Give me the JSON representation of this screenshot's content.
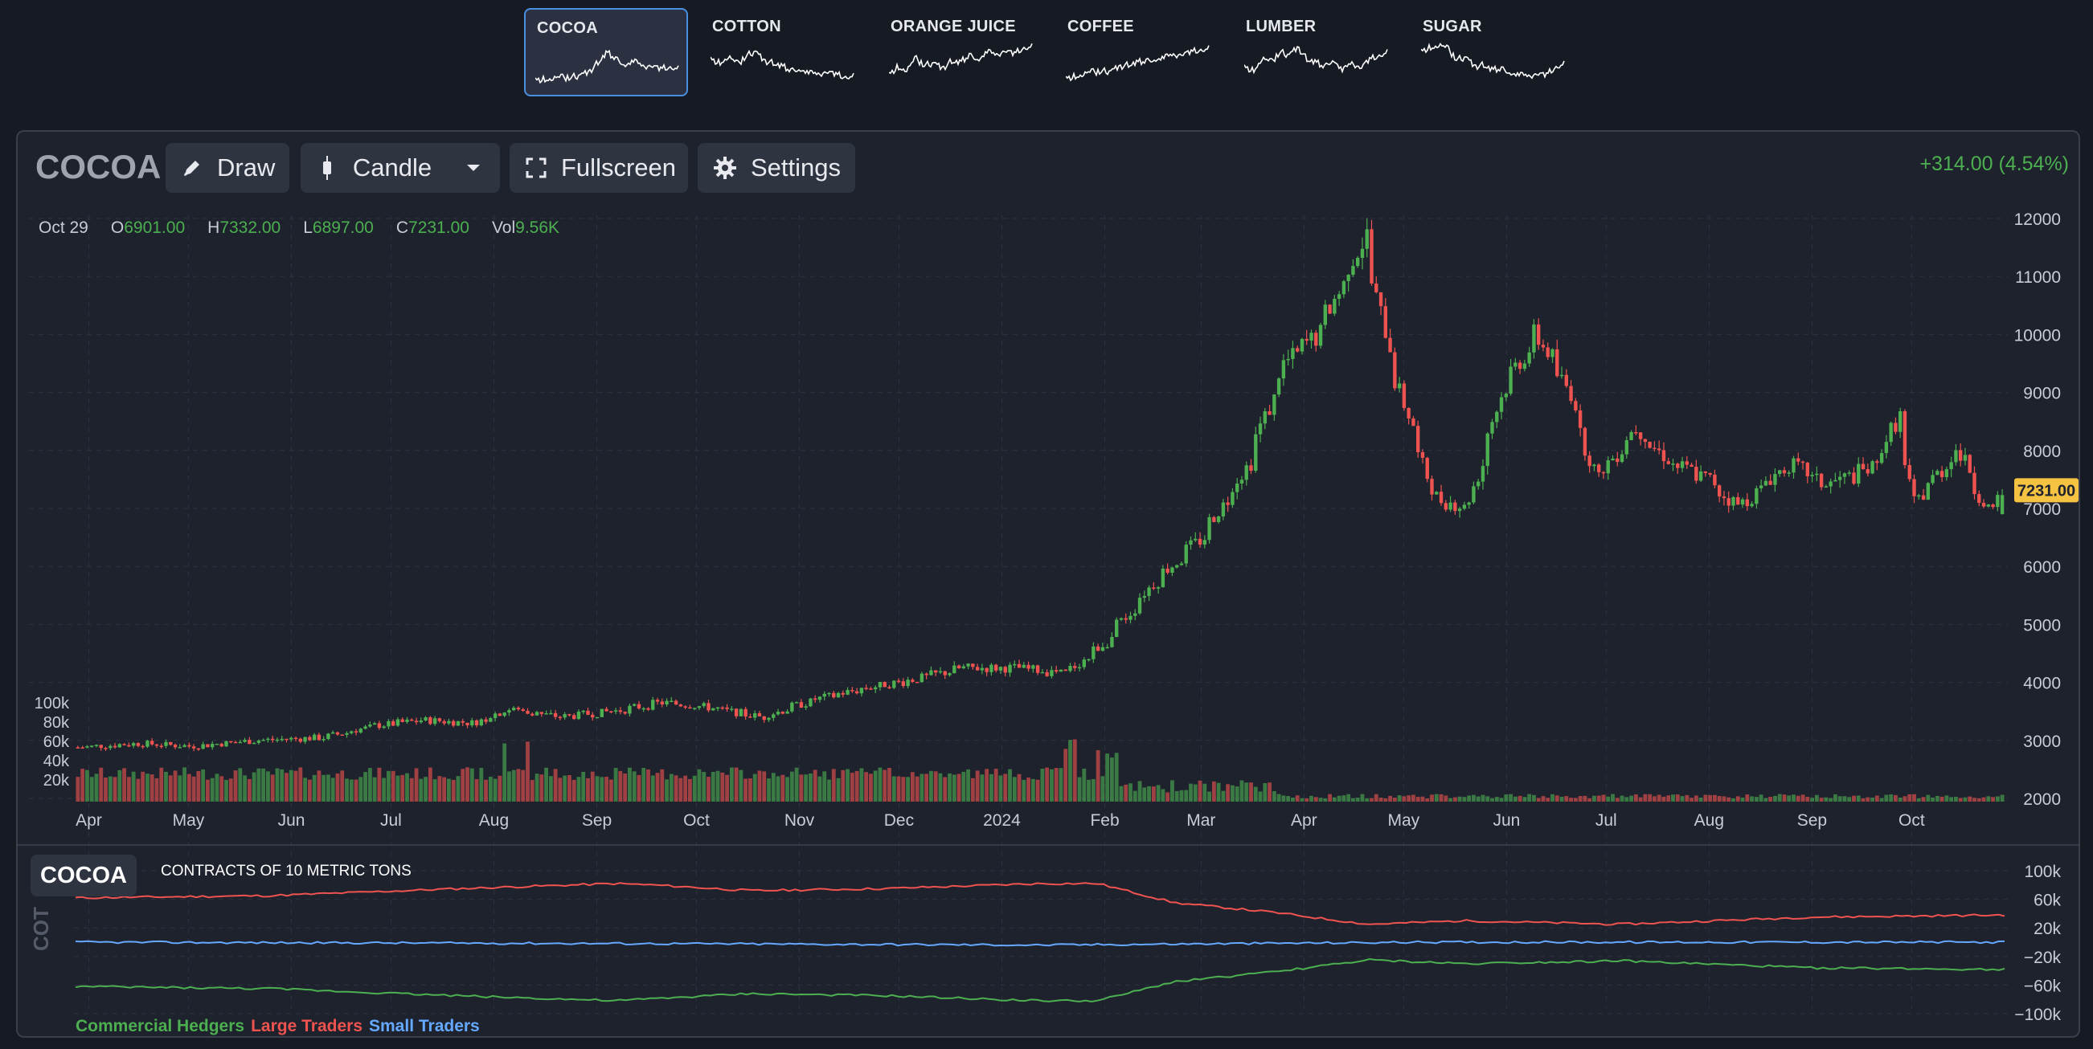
{
  "tabs": [
    {
      "label": "COCOA",
      "active": true
    },
    {
      "label": "COTTON",
      "active": false
    },
    {
      "label": "ORANGE JUICE",
      "active": false
    },
    {
      "label": "COFFEE",
      "active": false
    },
    {
      "label": "LUMBER",
      "active": false
    },
    {
      "label": "SUGAR",
      "active": false
    }
  ],
  "toolbar": {
    "symbol": "COCOA",
    "draw_label": "Draw",
    "chart_type_label": "Candle",
    "fullscreen_label": "Fullscreen",
    "settings_label": "Settings",
    "change": "+314.00 (4.54%)"
  },
  "ohlc": {
    "date": "Oct 29",
    "open_key": "O",
    "open": "6901.00",
    "high_key": "H",
    "high": "7332.00",
    "low_key": "L",
    "low": "6897.00",
    "close_key": "C",
    "close": "7231.00",
    "vol_key": "Vol",
    "vol": "9.56K"
  },
  "last_price_tag": "7231.00",
  "cot": {
    "tag": "COCOA",
    "unit": "CONTRACTS OF 10 METRIC TONS",
    "side_label": "COT",
    "legend": [
      {
        "label": "Commercial Hedgers",
        "color": "#4caf50"
      },
      {
        "label": "Large Traders",
        "color": "#ef5350"
      },
      {
        "label": "Small Traders",
        "color": "#64a8ff"
      }
    ]
  },
  "colors": {
    "up": "#4caf50",
    "down": "#ef5350",
    "accent": "#4a90e2",
    "price_tag": "#f5c242"
  },
  "chart_data": [
    {
      "type": "candlestick",
      "title": "COCOA",
      "y_ticks": [
        12000,
        11000,
        10000,
        9000,
        8000,
        7000,
        6000,
        5000,
        4000,
        3000,
        2000
      ],
      "ylim": [
        2000,
        12000
      ],
      "x_ticks": [
        "Apr",
        "May",
        "Jun",
        "Jul",
        "Aug",
        "Sep",
        "Oct",
        "Nov",
        "Dec",
        "2024",
        "Feb",
        "Mar",
        "Apr",
        "May",
        "Jun",
        "Jul",
        "Aug",
        "Sep",
        "Oct"
      ],
      "close_path": [
        [
          "2023-03-28",
          2880
        ],
        [
          "2023-04-15",
          2950
        ],
        [
          "2023-05-01",
          2900
        ],
        [
          "2023-05-20",
          3000
        ],
        [
          "2023-06-10",
          3050
        ],
        [
          "2023-06-25",
          3250
        ],
        [
          "2023-07-10",
          3350
        ],
        [
          "2023-07-25",
          3300
        ],
        [
          "2023-08-05",
          3550
        ],
        [
          "2023-08-20",
          3400
        ],
        [
          "2023-09-05",
          3500
        ],
        [
          "2023-09-20",
          3650
        ],
        [
          "2023-10-01",
          3600
        ],
        [
          "2023-10-20",
          3400
        ],
        [
          "2023-11-05",
          3700
        ],
        [
          "2023-11-20",
          3900
        ],
        [
          "2023-12-05",
          4050
        ],
        [
          "2023-12-20",
          4250
        ],
        [
          "2024-01-05",
          4250
        ],
        [
          "2024-01-20",
          4150
        ],
        [
          "2024-02-01",
          4700
        ],
        [
          "2024-02-15",
          5700
        ],
        [
          "2024-03-01",
          6500
        ],
        [
          "2024-03-15",
          7800
        ],
        [
          "2024-03-26",
          9500
        ],
        [
          "2024-04-05",
          10000
        ],
        [
          "2024-04-19",
          11700
        ],
        [
          "2024-04-26",
          9800
        ],
        [
          "2024-05-01",
          8800
        ],
        [
          "2024-05-10",
          7200
        ],
        [
          "2024-05-20",
          7000
        ],
        [
          "2024-05-31",
          9100
        ],
        [
          "2024-06-10",
          10000
        ],
        [
          "2024-06-20",
          9000
        ],
        [
          "2024-06-28",
          7500
        ],
        [
          "2024-07-10",
          8400
        ],
        [
          "2024-07-20",
          7800
        ],
        [
          "2024-08-01",
          7500
        ],
        [
          "2024-08-10",
          7000
        ],
        [
          "2024-08-25",
          7800
        ],
        [
          "2024-09-05",
          7400
        ],
        [
          "2024-09-20",
          7700
        ],
        [
          "2024-09-27",
          8600
        ],
        [
          "2024-10-02",
          7100
        ],
        [
          "2024-10-15",
          8000
        ],
        [
          "2024-10-25",
          6900
        ],
        [
          "2024-10-29",
          7231
        ]
      ],
      "last_candle": {
        "date": "2024-10-29",
        "open": 6901,
        "high": 7332,
        "low": 6897,
        "close": 7231,
        "volume": "9.56K"
      }
    },
    {
      "type": "bar",
      "title": "Volume",
      "y_ticks": [
        "100k",
        "80k",
        "60k",
        "40k",
        "20k"
      ],
      "ylim": [
        0,
        100000
      ]
    },
    {
      "type": "line",
      "title": "COT",
      "y_ticks": [
        "100k",
        "60k",
        "20k",
        "−20k",
        "−60k",
        "−100k"
      ],
      "ylim": [
        -100000,
        100000
      ],
      "series": [
        {
          "name": "Large Traders",
          "color": "#ef5350",
          "values": [
            [
              0,
              62000
            ],
            [
              0.1,
              65000
            ],
            [
              0.2,
              75000
            ],
            [
              0.28,
              82000
            ],
            [
              0.3,
              80000
            ],
            [
              0.35,
              72000
            ],
            [
              0.42,
              75000
            ],
            [
              0.5,
              82000
            ],
            [
              0.53,
              82000
            ],
            [
              0.57,
              55000
            ],
            [
              0.62,
              42000
            ],
            [
              0.67,
              25000
            ],
            [
              0.72,
              30000
            ],
            [
              0.8,
              25000
            ],
            [
              0.9,
              35000
            ],
            [
              1,
              38000
            ]
          ]
        },
        {
          "name": "Small Traders",
          "color": "#64a8ff",
          "values": [
            [
              0,
              0
            ],
            [
              0.3,
              -2000
            ],
            [
              0.5,
              -4000
            ],
            [
              0.7,
              0
            ],
            [
              1,
              0
            ]
          ]
        },
        {
          "name": "Commercial Hedgers",
          "color": "#4caf50",
          "values": [
            [
              0,
              -62000
            ],
            [
              0.1,
              -65000
            ],
            [
              0.2,
              -75000
            ],
            [
              0.28,
              -82000
            ],
            [
              0.3,
              -79000
            ],
            [
              0.35,
              -72000
            ],
            [
              0.42,
              -75000
            ],
            [
              0.5,
              -82000
            ],
            [
              0.53,
              -82000
            ],
            [
              0.57,
              -55000
            ],
            [
              0.62,
              -42000
            ],
            [
              0.67,
              -25000
            ],
            [
              0.72,
              -30000
            ],
            [
              0.8,
              -26000
            ],
            [
              0.9,
              -36000
            ],
            [
              1,
              -38000
            ]
          ]
        }
      ]
    }
  ],
  "sparklines": {
    "COCOA": [
      0.9,
      0.88,
      0.87,
      0.85,
      0.82,
      0.78,
      0.7,
      0.45,
      0.2,
      0.35,
      0.5,
      0.4,
      0.55,
      0.5,
      0.6,
      0.55,
      0.58
    ],
    "COTTON": [
      0.4,
      0.5,
      0.35,
      0.55,
      0.3,
      0.2,
      0.45,
      0.5,
      0.6,
      0.7,
      0.65,
      0.75,
      0.8,
      0.7,
      0.78,
      0.85,
      0.82
    ],
    "ORANGE JUICE": [
      0.8,
      0.6,
      0.7,
      0.4,
      0.55,
      0.5,
      0.65,
      0.45,
      0.5,
      0.3,
      0.4,
      0.2,
      0.3,
      0.15,
      0.25,
      0.1,
      0.05
    ],
    "COFFEE": [
      0.9,
      0.85,
      0.8,
      0.75,
      0.7,
      0.72,
      0.6,
      0.55,
      0.5,
      0.45,
      0.4,
      0.35,
      0.3,
      0.25,
      0.2,
      0.15,
      0.1
    ],
    "LUMBER": [
      0.6,
      0.7,
      0.4,
      0.5,
      0.2,
      0.3,
      0.1,
      0.4,
      0.5,
      0.6,
      0.4,
      0.7,
      0.5,
      0.6,
      0.4,
      0.3,
      0.2
    ],
    "SUGAR": [
      0.2,
      0.1,
      0.05,
      0.15,
      0.4,
      0.35,
      0.6,
      0.55,
      0.7,
      0.65,
      0.75,
      0.8,
      0.85,
      0.75,
      0.8,
      0.6,
      0.5
    ]
  }
}
